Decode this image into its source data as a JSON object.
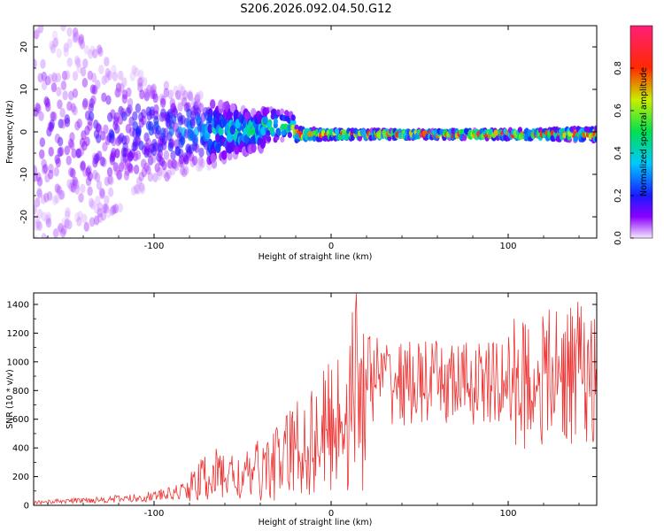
{
  "title": "S206.2026.092.04.50.G12",
  "chart_data": [
    {
      "type": "heatmap",
      "xlabel": "Height of straight line (km)",
      "ylabel": "Frequency (Hz)",
      "xlim": [
        -168,
        150
      ],
      "ylim": [
        -25,
        25
      ],
      "xticks": [
        -100,
        0,
        100
      ],
      "yticks": [
        -20,
        -10,
        0,
        10,
        20
      ],
      "colorbar": {
        "label": "Normalized spectral amplitude",
        "range": [
          0,
          1
        ],
        "ticks": [
          "0.0",
          "0.2",
          "0.4",
          "0.6",
          "0.8"
        ]
      },
      "description_points": [
        {
          "x": -160,
          "freq_spread": 25,
          "peak_amplitude": 0.15
        },
        {
          "x": -100,
          "freq_spread": 12,
          "peak_amplitude": 0.25
        },
        {
          "x": -70,
          "freq_spread": 8,
          "peak_amplitude": 0.4
        },
        {
          "x": -50,
          "freq_spread": 5,
          "peak_amplitude": 0.5
        },
        {
          "x": -25,
          "freq_spread": 3,
          "peak_amplitude": 0.6
        },
        {
          "x": -20,
          "freq_spread": 1.5,
          "peak_amplitude": 0.9
        },
        {
          "x": 0,
          "freq_spread": 1,
          "peak_amplitude": 0.95
        },
        {
          "x": 50,
          "freq_spread": 0.8,
          "peak_amplitude": 1.0
        },
        {
          "x": 100,
          "freq_spread": 1,
          "peak_amplitude": 0.95
        },
        {
          "x": 150,
          "freq_spread": 1.5,
          "peak_amplitude": 0.85
        }
      ]
    },
    {
      "type": "line",
      "xlabel": "Height of straight line (km)",
      "ylabel": "SNR (10 * v/v)",
      "xlim": [
        -168,
        150
      ],
      "ylim": [
        0,
        1480
      ],
      "xticks": [
        -100,
        0,
        100
      ],
      "yticks": [
        0,
        200,
        400,
        600,
        800,
        1000,
        1200,
        1400
      ],
      "color": "#ee3333",
      "x": [
        -168,
        -150,
        -130,
        -110,
        -90,
        -80,
        -70,
        -60,
        -50,
        -40,
        -30,
        -20,
        -10,
        0,
        10,
        15,
        20,
        30,
        40,
        60,
        80,
        100,
        120,
        130,
        140,
        145,
        150
      ],
      "y": [
        20,
        30,
        40,
        50,
        80,
        120,
        200,
        220,
        180,
        250,
        300,
        400,
        450,
        550,
        700,
        850,
        900,
        880,
        850,
        850,
        850,
        850,
        880,
        900,
        950,
        850,
        900
      ]
    }
  ]
}
